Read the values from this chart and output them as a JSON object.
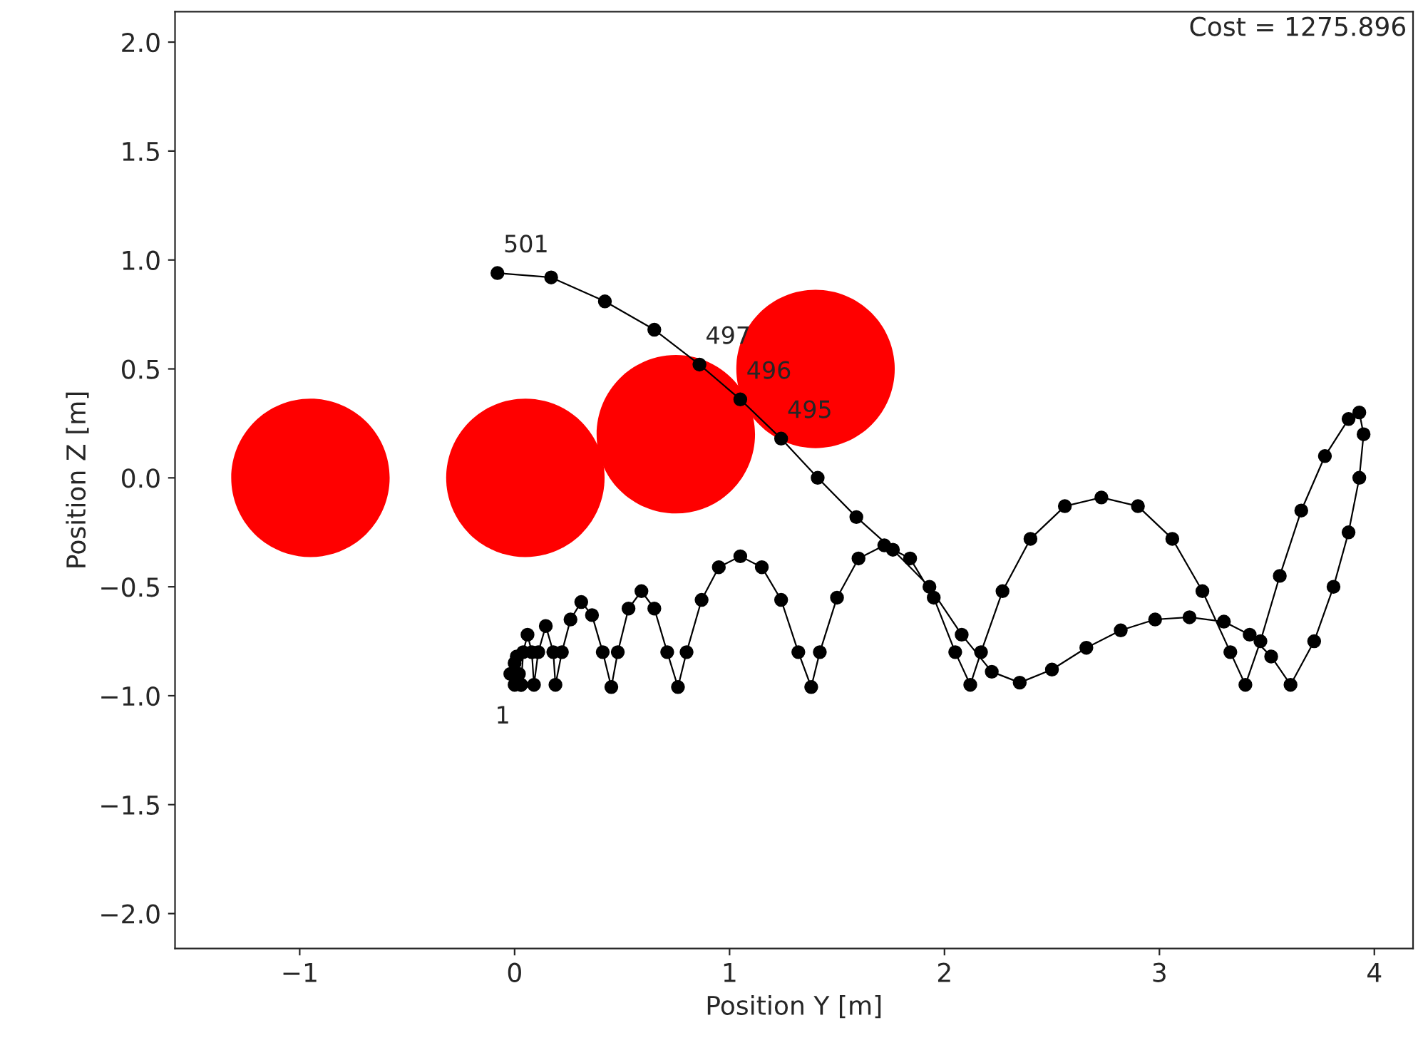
{
  "chart_data": {
    "type": "line",
    "xlabel": "Position Y [m]",
    "ylabel": "Position Z [m]",
    "xlim": [
      -1.58,
      4.18
    ],
    "ylim": [
      -2.16,
      2.14
    ],
    "xticks": [
      {
        "value": -1,
        "label": "−1"
      },
      0,
      1,
      2,
      3,
      4
    ],
    "yticks": [
      {
        "value": -2.0,
        "label": "−2.0"
      },
      {
        "value": -1.5,
        "label": "−1.5"
      },
      {
        "value": -1.0,
        "label": "−1.0"
      },
      {
        "value": -0.5,
        "label": "−0.5"
      },
      {
        "value": 0.0,
        "label": "0.0"
      },
      {
        "value": 0.5,
        "label": "0.5"
      },
      {
        "value": 1.0,
        "label": "1.0"
      },
      {
        "value": 1.5,
        "label": "1.5"
      },
      {
        "value": 2.0,
        "label": "2.0"
      }
    ],
    "grid": false,
    "legend": false,
    "marker": "circle",
    "line_style": "solid",
    "series": [
      {
        "type": "bubble",
        "color": "#ff0000",
        "x": [
          -0.95,
          0.05,
          0.75,
          1.4
        ],
        "values": [
          0.0,
          0.0,
          0.2,
          0.5
        ],
        "sizes": [
          1,
          1,
          1,
          1
        ]
      },
      {
        "color": "#000000",
        "x": [
          0.0,
          -0.02,
          0.0,
          0.02,
          0.03,
          0.01,
          0.03,
          0.04,
          0.06,
          0.08,
          0.09,
          0.11,
          0.145,
          0.18,
          0.19,
          0.22,
          0.26,
          0.31,
          0.36,
          0.41,
          0.45,
          0.48,
          0.53,
          0.59,
          0.65,
          0.71,
          0.76,
          0.8,
          0.87,
          0.95,
          1.05,
          1.15,
          1.24,
          1.32,
          1.38,
          1.42,
          1.5,
          1.6,
          1.72,
          1.84,
          1.95,
          2.05,
          2.12,
          2.17,
          2.27,
          2.4,
          2.56,
          2.73,
          2.9,
          3.06,
          3.2,
          3.33,
          3.4,
          3.47,
          3.56,
          3.66,
          3.77,
          3.88,
          3.93,
          3.95,
          3.93,
          3.88,
          3.81,
          3.72,
          3.61,
          3.52,
          3.42,
          3.3,
          3.14,
          2.98,
          2.82,
          2.66,
          2.5,
          2.35,
          2.22,
          2.08,
          1.93,
          1.76,
          1.59,
          1.41,
          1.24,
          1.05,
          0.86,
          0.65,
          0.42,
          0.17,
          -0.08
        ],
        "values": [
          -0.95,
          -0.9,
          -0.85,
          -0.9,
          -0.95,
          -0.82,
          -0.95,
          -0.8,
          -0.72,
          -0.8,
          -0.95,
          -0.8,
          -0.68,
          -0.8,
          -0.95,
          -0.8,
          -0.65,
          -0.57,
          -0.63,
          -0.8,
          -0.96,
          -0.8,
          -0.6,
          -0.52,
          -0.6,
          -0.8,
          -0.96,
          -0.8,
          -0.56,
          -0.41,
          -0.36,
          -0.41,
          -0.56,
          -0.8,
          -0.96,
          -0.8,
          -0.55,
          -0.37,
          -0.31,
          -0.37,
          -0.55,
          -0.8,
          -0.95,
          -0.8,
          -0.52,
          -0.28,
          -0.13,
          -0.09,
          -0.13,
          -0.28,
          -0.52,
          -0.8,
          -0.95,
          -0.75,
          -0.45,
          -0.15,
          0.1,
          0.27,
          0.3,
          0.2,
          0.0,
          -0.25,
          -0.5,
          -0.75,
          -0.95,
          -0.82,
          -0.72,
          -0.66,
          -0.64,
          -0.65,
          -0.7,
          -0.78,
          -0.88,
          -0.94,
          -0.89,
          -0.72,
          -0.5,
          -0.33,
          -0.18,
          0.0,
          0.18,
          0.36,
          0.52,
          0.68,
          0.81,
          0.92,
          0.94
        ]
      }
    ],
    "annotations": [
      {
        "text": "1",
        "x": 0.0,
        "y": -0.95
      },
      {
        "text": "495",
        "x": 1.24,
        "y": 0.18
      },
      {
        "text": "496",
        "x": 1.05,
        "y": 0.36
      },
      {
        "text": "497",
        "x": 0.86,
        "y": 0.52
      },
      {
        "text": "501",
        "x": -0.08,
        "y": 0.94
      },
      "Cost = 1275.896"
    ]
  }
}
